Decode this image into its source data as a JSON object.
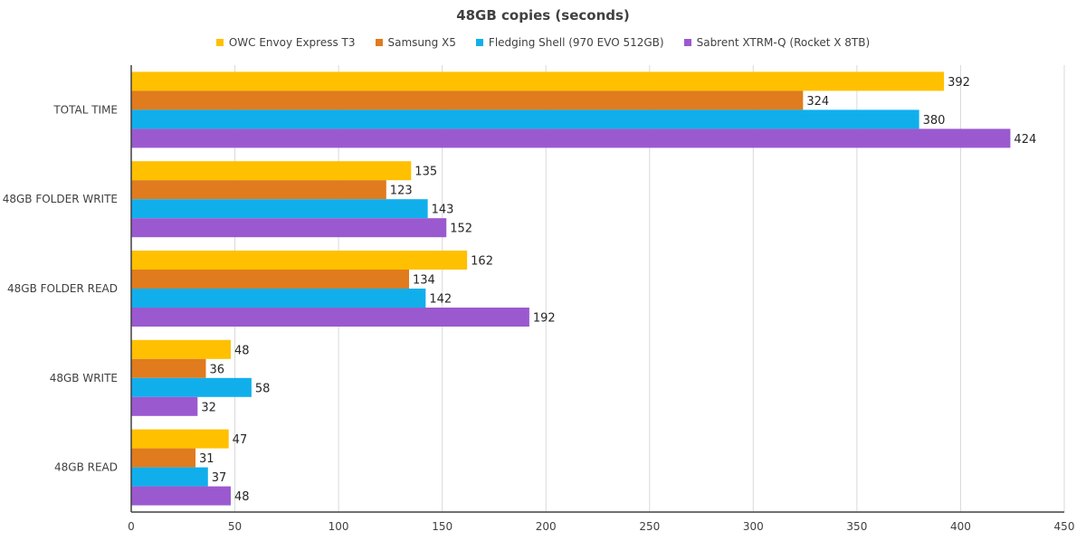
{
  "chart_data": {
    "type": "bar",
    "orientation": "horizontal",
    "title": "48GB copies (seconds)",
    "categories": [
      "TOTAL TIME",
      "48GB FOLDER WRITE",
      "48GB FOLDER READ",
      "48GB WRITE",
      "48GB READ"
    ],
    "series": [
      {
        "name": "OWC Envoy Express T3",
        "color": "#FFC000",
        "values": [
          392,
          135,
          162,
          48,
          47
        ]
      },
      {
        "name": "Samsung X5",
        "color": "#E07B1E",
        "values": [
          324,
          123,
          134,
          36,
          31
        ]
      },
      {
        "name": "Fledging Shell (970 EVO 512GB)",
        "color": "#10AFEC",
        "values": [
          380,
          143,
          142,
          58,
          37
        ]
      },
      {
        "name": "Sabrent XTRM-Q (Rocket X 8TB)",
        "color": "#9B59D0",
        "values": [
          424,
          152,
          192,
          32,
          48
        ]
      }
    ],
    "xlim": [
      0,
      450
    ],
    "xticks": [
      0,
      50,
      100,
      150,
      200,
      250,
      300,
      350,
      400,
      450
    ],
    "grid": true,
    "legend_position": "top"
  }
}
